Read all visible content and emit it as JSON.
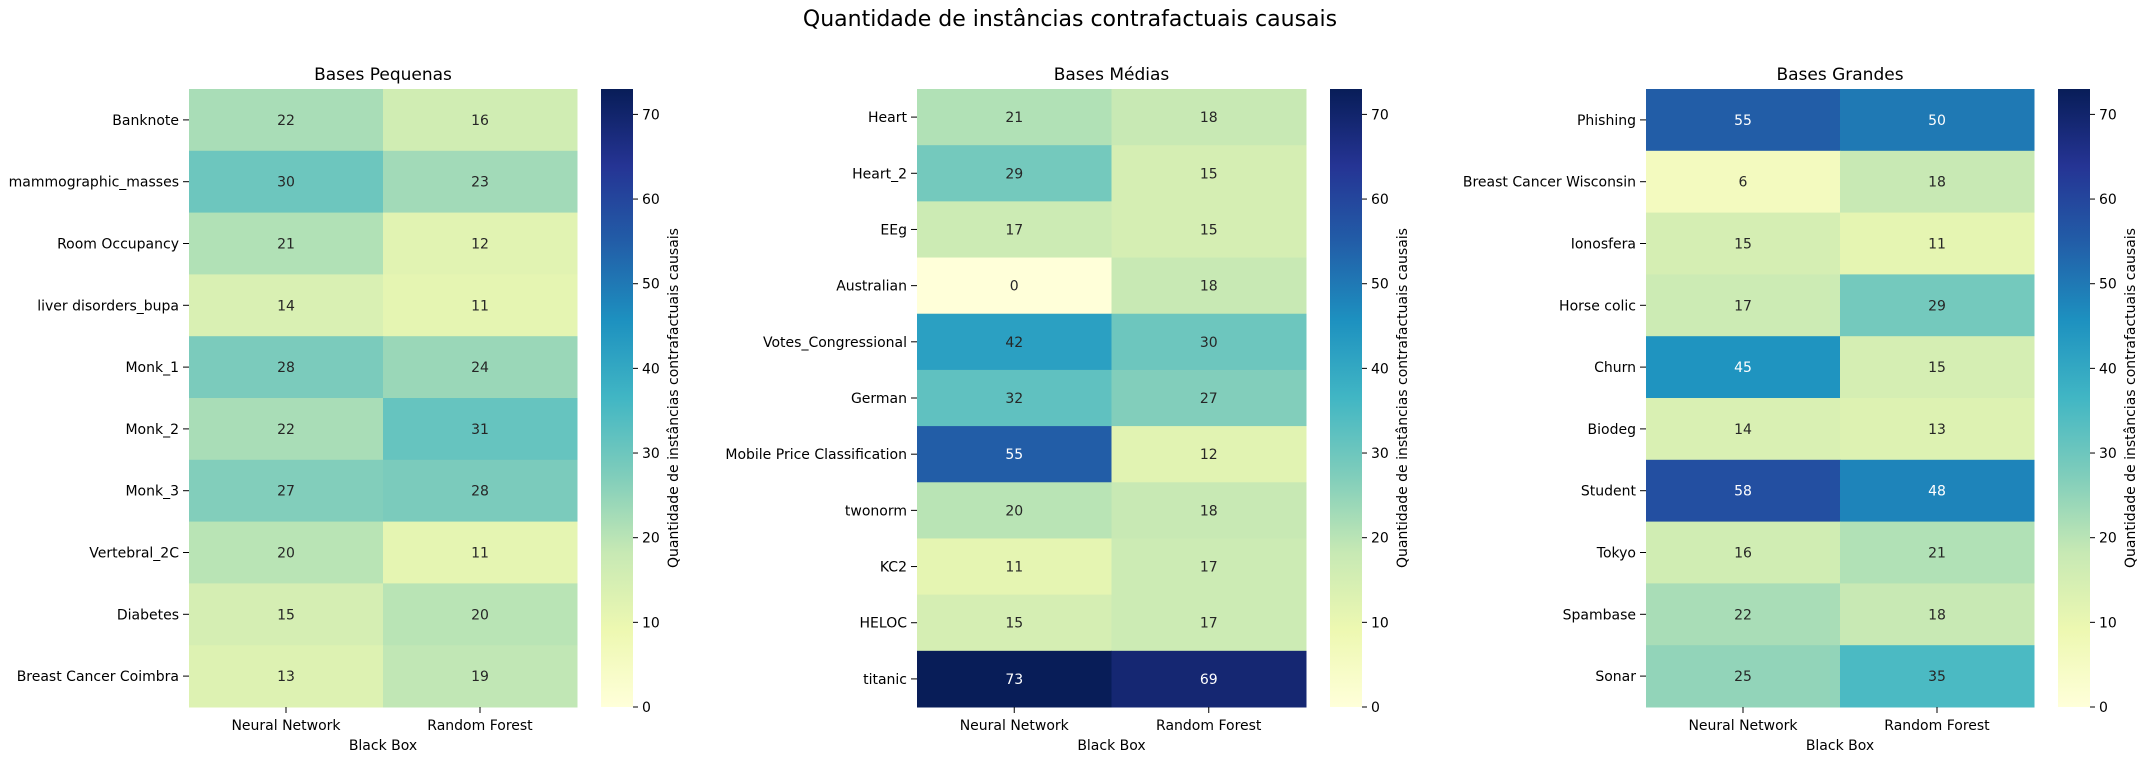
{
  "figure": {
    "title": "Quantidade de instâncias contrafactuais causais"
  },
  "chart_data": [
    {
      "type": "heatmap",
      "title": "Bases Pequenas",
      "xlabel": "Black Box",
      "ylabel": "",
      "columns": [
        "Neural Network",
        "Random Forest"
      ],
      "rows": [
        "Banknote",
        "mammographic_masses",
        "Room Occupancy",
        "liver disorders_bupa",
        "Monk_1",
        "Monk_2",
        "Monk_3",
        "Vertebral_2C",
        "Diabetes",
        "Breast Cancer Coimbra"
      ],
      "values": [
        [
          22,
          16
        ],
        [
          30,
          23
        ],
        [
          21,
          12
        ],
        [
          14,
          11
        ],
        [
          28,
          24
        ],
        [
          22,
          31
        ],
        [
          27,
          28
        ],
        [
          20,
          11
        ],
        [
          15,
          20
        ],
        [
          13,
          19
        ]
      ],
      "colorbar": {
        "label": "Quantidade de instâncias contrafactuais causais",
        "vmin": 0,
        "vmax": 73,
        "ticks": [
          0,
          10,
          20,
          30,
          40,
          50,
          60,
          70
        ],
        "colormap": "YlGnBu"
      }
    },
    {
      "type": "heatmap",
      "title": "Bases Médias",
      "xlabel": "Black Box",
      "ylabel": "",
      "columns": [
        "Neural Network",
        "Random Forest"
      ],
      "rows": [
        "Heart",
        "Heart_2",
        "EEg",
        "Australian",
        "Votes_Congressional",
        "German",
        "Mobile Price Classification",
        "twonorm",
        "KC2",
        "HELOC",
        "titanic"
      ],
      "values": [
        [
          21,
          18
        ],
        [
          29,
          15
        ],
        [
          17,
          15
        ],
        [
          0,
          18
        ],
        [
          42,
          30
        ],
        [
          32,
          27
        ],
        [
          55,
          12
        ],
        [
          20,
          18
        ],
        [
          11,
          17
        ],
        [
          15,
          17
        ],
        [
          73,
          69
        ]
      ],
      "colorbar": {
        "label": "Quantidade de instâncias contrafactuais causais",
        "vmin": 0,
        "vmax": 73,
        "ticks": [
          0,
          10,
          20,
          30,
          40,
          50,
          60,
          70
        ],
        "colormap": "YlGnBu"
      }
    },
    {
      "type": "heatmap",
      "title": "Bases Grandes",
      "xlabel": "Black Box",
      "ylabel": "",
      "columns": [
        "Neural Network",
        "Random Forest"
      ],
      "rows": [
        "Phishing",
        "Breast Cancer Wisconsin",
        "Ionosfera",
        "Horse colic",
        "Churn",
        "Biodeg",
        "Student",
        "Tokyo",
        "Spambase",
        "Sonar"
      ],
      "values": [
        [
          55,
          50
        ],
        [
          6,
          18
        ],
        [
          15,
          11
        ],
        [
          17,
          29
        ],
        [
          45,
          15
        ],
        [
          14,
          13
        ],
        [
          58,
          48
        ],
        [
          16,
          21
        ],
        [
          22,
          18
        ],
        [
          25,
          35
        ]
      ],
      "colorbar": {
        "label": "Quantidade de instâncias contrafactuais causais",
        "vmin": 0,
        "vmax": 73,
        "ticks": [
          0,
          10,
          20,
          30,
          40,
          50,
          60,
          70
        ],
        "colormap": "YlGnBu"
      }
    }
  ]
}
